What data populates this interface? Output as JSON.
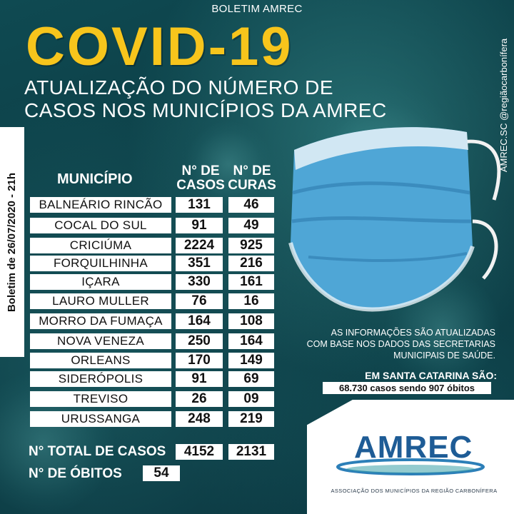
{
  "header": {
    "top_label": "BOLETIM AMREC",
    "title": "COVID-19",
    "subtitle_line1": "ATUALIZAÇÃO DO NÚMERO DE",
    "subtitle_line2": "CASOS  NOS MUNICÍPIOS DA AMREC"
  },
  "side": {
    "date": "Boletim de 26/07/2020  - 21h",
    "social": "AMREC.SC   @regiãocarbonífera"
  },
  "table": {
    "col_municipio": "MUNICÍPIO",
    "col_casos_line1": "N° DE",
    "col_casos_line2": "CASOS",
    "col_curas_line1": "N° DE",
    "col_curas_line2": "CURAS",
    "rows": [
      {
        "municipio": "BALNEÁRIO RINCÃO",
        "casos": "131",
        "curas": "46"
      },
      {
        "municipio": "COCAL DO SUL",
        "casos": "91",
        "curas": "49"
      },
      {
        "municipio": "CRICIÚMA",
        "casos": "2224",
        "curas": "925"
      },
      {
        "municipio": "FORQUILHINHA",
        "casos": "351",
        "curas": "216"
      },
      {
        "municipio": "IÇARA",
        "casos": "330",
        "curas": "161"
      },
      {
        "municipio": "LAURO MULLER",
        "casos": "76",
        "curas": "16"
      },
      {
        "municipio": "MORRO DA FUMAÇA",
        "casos": "164",
        "curas": "108"
      },
      {
        "municipio": "NOVA VENEZA",
        "casos": "250",
        "curas": "164"
      },
      {
        "municipio": "ORLEANS",
        "casos": "170",
        "curas": "149"
      },
      {
        "municipio": "SIDERÓPOLIS",
        "casos": "91",
        "curas": "69"
      },
      {
        "municipio": "TREVISO",
        "casos": "26",
        "curas": "09"
      },
      {
        "municipio": "URUSSANGA",
        "casos": "248",
        "curas": "219"
      }
    ]
  },
  "totals": {
    "total_label": "N° TOTAL DE CASOS",
    "total_casos": "4152",
    "total_curas": "2131",
    "obitos_label": "N° DE ÓBITOS",
    "obitos": "54"
  },
  "info": {
    "line1": "AS INFORMAÇÕES SÃO ATUALIZADAS",
    "line2": "COM BASE NOS DADOS DAS SECRETARIAS",
    "line3": "MUNICIPAIS DE SAÚDE.",
    "sc_label": "EM SANTA CATARINA SÃO:",
    "sc_value": "68.730 casos sendo 907 óbitos"
  },
  "logo": {
    "name": "AMREC",
    "tagline": "ASSOCIAÇÃO DOS MUNICÍPIOS DA REGIÃO CARBONÍFERA"
  },
  "colors": {
    "title": "#f7c51c",
    "background": "#0b3a40",
    "logo": "#1e5c96",
    "mask": "#4fa6d6"
  },
  "icons": [
    "facebook-icon",
    "instagram-icon",
    "face-mask-icon"
  ]
}
